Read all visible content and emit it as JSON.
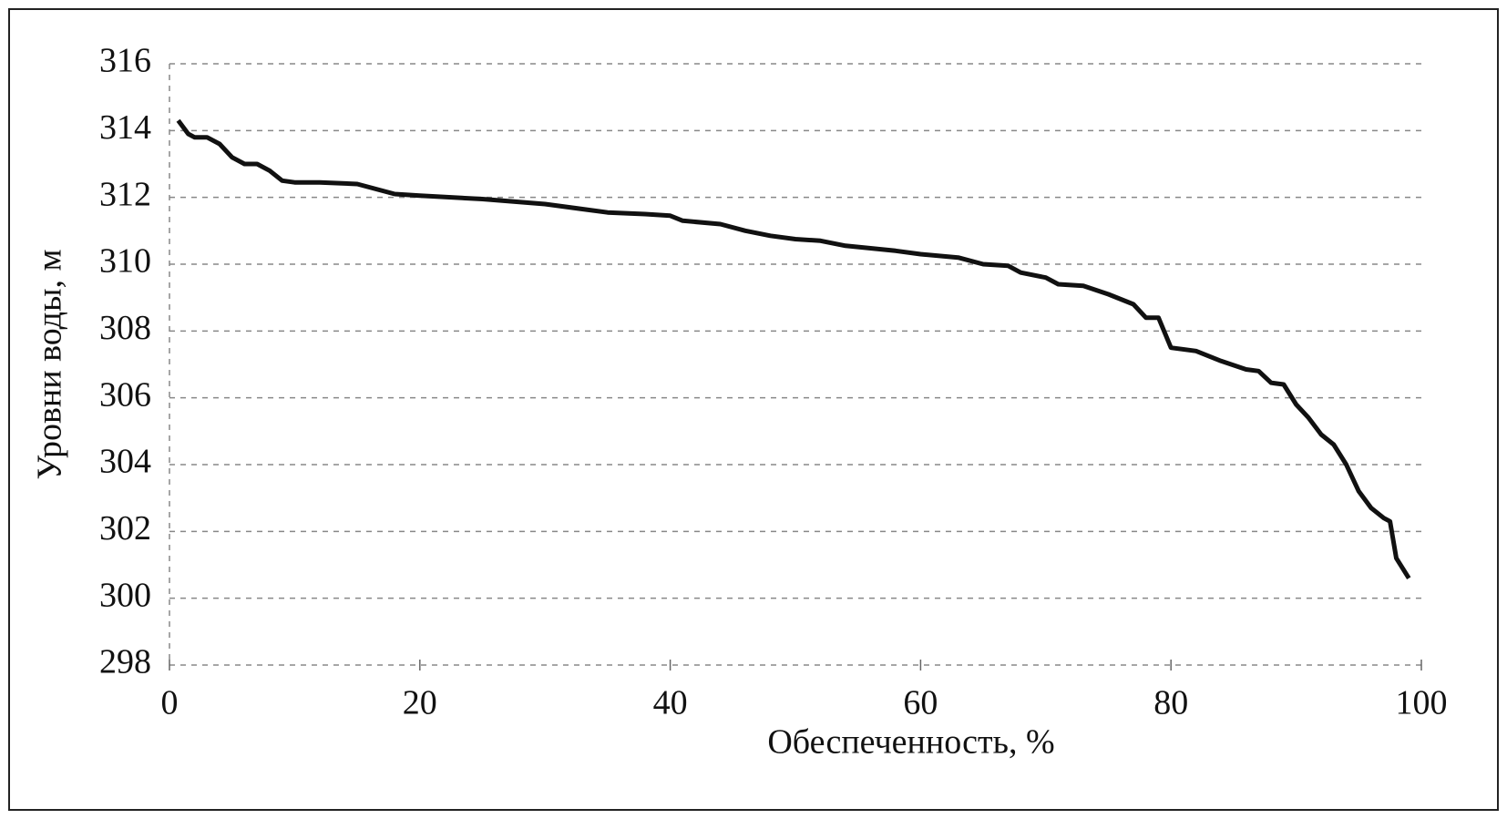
{
  "chart_data": {
    "type": "line",
    "x_label": "Обеспеченность, %",
    "y_label": "Уровни воды, м",
    "xlim": [
      0,
      100
    ],
    "xticks": [
      0,
      20,
      40,
      60,
      80,
      100
    ],
    "ylim": [
      298,
      316
    ],
    "yticks": [
      298,
      300,
      302,
      304,
      306,
      308,
      310,
      312,
      314,
      316
    ],
    "grid": true,
    "series": [
      {
        "color": "#111111",
        "x": [
          0.7,
          1.5,
          2,
          3,
          4,
          5,
          6,
          7,
          8,
          9,
          10,
          12,
          15,
          18,
          20,
          25,
          30,
          35,
          38,
          40,
          41,
          44,
          46,
          48,
          50,
          52,
          54,
          58,
          60,
          63,
          65,
          67,
          68,
          70,
          71,
          73,
          75,
          77,
          78,
          79,
          80,
          82,
          84,
          86,
          87,
          88,
          89,
          90,
          91,
          92,
          93,
          94,
          95,
          96,
          97,
          97.5,
          98,
          99
        ],
        "values": [
          314.3,
          313.9,
          313.8,
          313.8,
          313.6,
          313.2,
          313.0,
          313.0,
          312.8,
          312.5,
          312.45,
          312.45,
          312.4,
          312.1,
          312.05,
          311.95,
          311.8,
          311.55,
          311.5,
          311.45,
          311.3,
          311.2,
          311.0,
          310.85,
          310.75,
          310.7,
          310.55,
          310.4,
          310.3,
          310.2,
          310.0,
          309.95,
          309.75,
          309.6,
          309.4,
          309.35,
          309.1,
          308.8,
          308.4,
          308.4,
          307.5,
          307.4,
          307.1,
          306.85,
          306.8,
          306.45,
          306.4,
          305.8,
          305.4,
          304.9,
          304.6,
          304.0,
          303.2,
          302.7,
          302.4,
          302.3,
          301.2,
          300.6
        ]
      }
    ]
  }
}
